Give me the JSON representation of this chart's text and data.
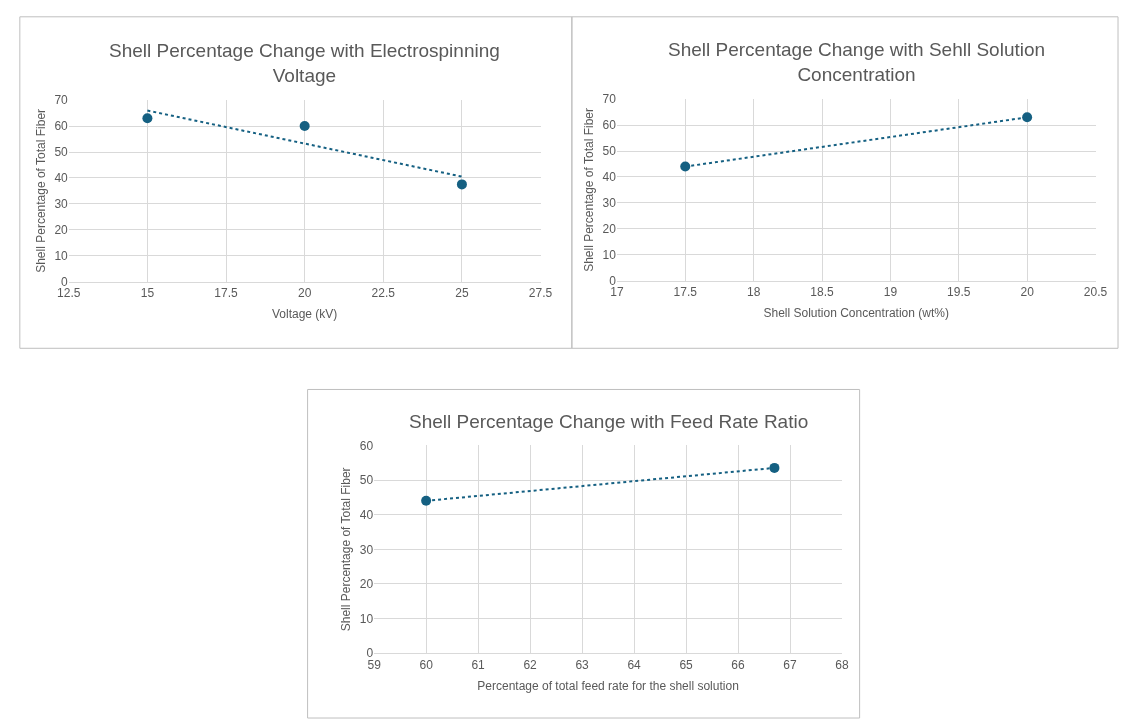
{
  "chart_data": [
    {
      "type": "scatter",
      "title": "Shell Percentage Change with Electrospinning Voltage",
      "xlabel": "Voltage (kV)",
      "ylabel": "Shell Percentage of Total Fiber",
      "xlim": [
        12.5,
        27.5
      ],
      "xticks": [
        12.5,
        15,
        17.5,
        20,
        22.5,
        25,
        27.5
      ],
      "ylim": [
        0,
        70
      ],
      "yticks": [
        0,
        10,
        20,
        30,
        40,
        50,
        60,
        70
      ],
      "grid": true,
      "series": [
        {
          "color": "#156082",
          "marker": "circle",
          "x": [
            15,
            20,
            25
          ],
          "values": [
            63,
            60,
            37.5
          ]
        },
        {
          "type": "line",
          "color": "#156082",
          "marker": "none",
          "line_style": "dotted",
          "x": [
            15,
            25
          ],
          "values": [
            66,
            40.5
          ]
        }
      ]
    },
    {
      "type": "scatter",
      "title": "Shell Percentage Change with Sehll Solution Concentration",
      "xlabel": "Shell Solution Concentration (wt%)",
      "ylabel": "Shell Percentage of Total Fiber",
      "xlim": [
        17,
        20.5
      ],
      "xticks": [
        17,
        17.5,
        18,
        18.5,
        19,
        19.5,
        20,
        20.5
      ],
      "ylim": [
        0,
        70
      ],
      "yticks": [
        0,
        10,
        20,
        30,
        40,
        50,
        60,
        70
      ],
      "grid": true,
      "series": [
        {
          "color": "#156082",
          "marker": "circle",
          "x": [
            17.5,
            20
          ],
          "values": [
            44,
            63
          ]
        },
        {
          "type": "line",
          "color": "#156082",
          "marker": "none",
          "line_style": "dotted",
          "x": [
            17.5,
            20
          ],
          "values": [
            44,
            63
          ]
        }
      ]
    },
    {
      "type": "scatter",
      "title": "Shell Percentage Change with Feed Rate Ratio",
      "xlabel": "Percentage of total feed rate for the shell solution",
      "ylabel": "Shell Percentage of Total Fiber",
      "xlim": [
        59,
        68
      ],
      "xticks": [
        59,
        60,
        61,
        62,
        63,
        64,
        65,
        66,
        67,
        68
      ],
      "ylim": [
        0,
        60
      ],
      "yticks": [
        0,
        10,
        20,
        30,
        40,
        50,
        60
      ],
      "grid": true,
      "series": [
        {
          "color": "#156082",
          "marker": "circle",
          "x": [
            60,
            66.7
          ],
          "values": [
            44,
            53.5
          ]
        },
        {
          "type": "line",
          "color": "#156082",
          "marker": "none",
          "line_style": "dotted",
          "x": [
            60,
            66.7
          ],
          "values": [
            44,
            53.5
          ]
        }
      ]
    }
  ]
}
